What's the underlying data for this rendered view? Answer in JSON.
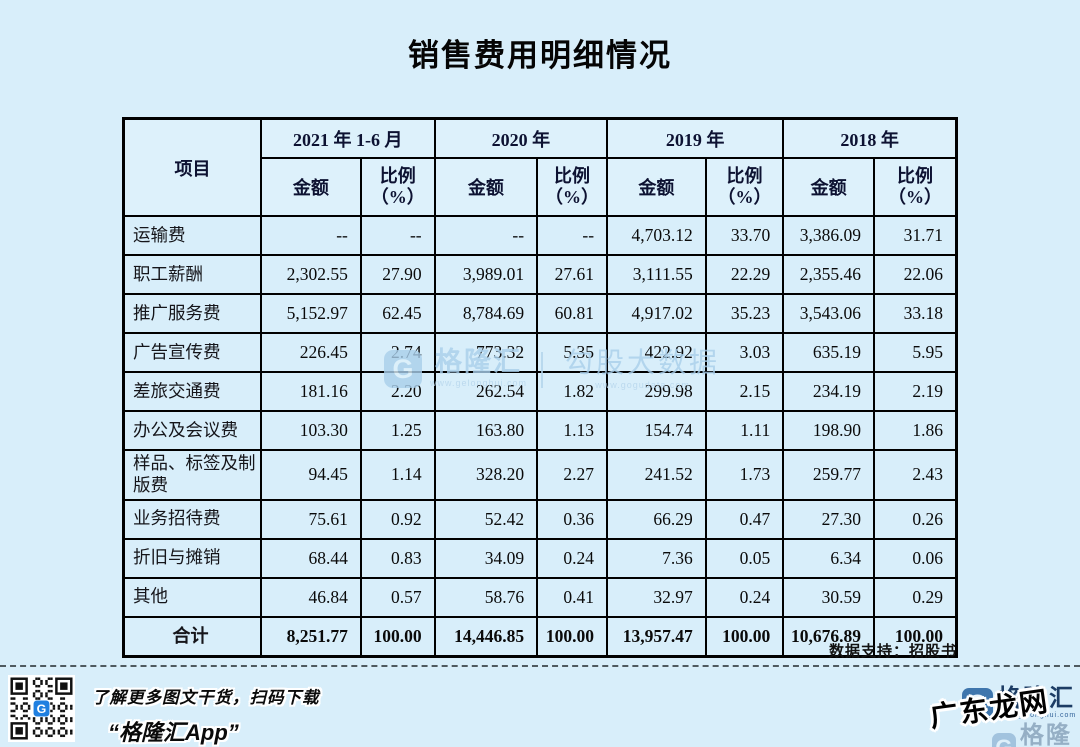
{
  "page": {
    "title": "销售费用明细情况",
    "background": "#d8eefa"
  },
  "table": {
    "item_header": "项目",
    "year_groups": [
      "2021 年 1-6 月",
      "2020 年",
      "2019 年",
      "2018 年"
    ],
    "sub_amount": "金额",
    "sub_ratio": "比例\n（%）",
    "rows": [
      {
        "item": "运输费",
        "values": [
          "--",
          "--",
          "--",
          "--",
          "4,703.12",
          "33.70",
          "3,386.09",
          "31.71"
        ]
      },
      {
        "item": "职工薪酬",
        "values": [
          "2,302.55",
          "27.90",
          "3,989.01",
          "27.61",
          "3,111.55",
          "22.29",
          "2,355.46",
          "22.06"
        ]
      },
      {
        "item": "推广服务费",
        "values": [
          "5,152.97",
          "62.45",
          "8,784.69",
          "60.81",
          "4,917.02",
          "35.23",
          "3,543.06",
          "33.18"
        ]
      },
      {
        "item": "广告宣传费",
        "values": [
          "226.45",
          "2.74",
          "773.32",
          "5.35",
          "422.92",
          "3.03",
          "635.19",
          "5.95"
        ]
      },
      {
        "item": "差旅交通费",
        "values": [
          "181.16",
          "2.20",
          "262.54",
          "1.82",
          "299.98",
          "2.15",
          "234.19",
          "2.19"
        ]
      },
      {
        "item": "办公及会议费",
        "values": [
          "103.30",
          "1.25",
          "163.80",
          "1.13",
          "154.74",
          "1.11",
          "198.90",
          "1.86"
        ]
      },
      {
        "item": "样品、标签及制版费",
        "values": [
          "94.45",
          "1.14",
          "328.20",
          "2.27",
          "241.52",
          "1.73",
          "259.77",
          "2.43"
        ]
      },
      {
        "item": "业务招待费",
        "values": [
          "75.61",
          "0.92",
          "52.42",
          "0.36",
          "66.29",
          "0.47",
          "27.30",
          "0.26"
        ]
      },
      {
        "item": "折旧与摊销",
        "values": [
          "68.44",
          "0.83",
          "34.09",
          "0.24",
          "7.36",
          "0.05",
          "6.34",
          "0.06"
        ]
      },
      {
        "item": "其他",
        "values": [
          "46.84",
          "0.57",
          "58.76",
          "0.41",
          "32.97",
          "0.24",
          "30.59",
          "0.29"
        ]
      },
      {
        "item": "合计",
        "total": true,
        "values": [
          "8,251.77",
          "100.00",
          "14,446.85",
          "100.00",
          "13,957.47",
          "100.00",
          "10,676.89",
          "100.00"
        ]
      }
    ]
  },
  "watermark": {
    "logo_letter": "G",
    "brand": "格隆汇",
    "brand_url": "www.gelonghui.com",
    "partner": "勾股大数据",
    "partner_url": "www.gogudata.com"
  },
  "footer": {
    "datasource": "数据支持：招股书",
    "promo_line1": "了解更多图文干货，扫码下载",
    "promo_line2": "“格隆汇App”",
    "logo_letter": "G",
    "brand": "格隆汇",
    "brand_url": "www.gelonghui.com",
    "overlay_watermark": "广东龙网"
  },
  "colors": {
    "background": "#d8eefa",
    "table_border": "#000000",
    "watermark_blue": "#a9cfeb",
    "brand_navy": "#1c3c64",
    "qr_logo_blue": "#1f7fe0"
  }
}
